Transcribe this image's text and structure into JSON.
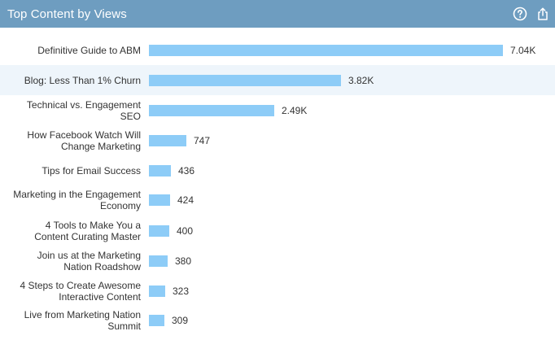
{
  "header": {
    "title": "Top Content by Views",
    "help_icon": "help-circle-icon",
    "share_icon": "share-export-icon"
  },
  "colors": {
    "header_bg": "#6e9dc0",
    "bar": "#8dccf7",
    "highlight_row": "#eef5fb"
  },
  "chart_data": {
    "type": "bar",
    "orientation": "horizontal",
    "title": "Top Content by Views",
    "categories": [
      [
        "Definitive Guide to ABM"
      ],
      [
        "Blog: Less Than 1% Churn"
      ],
      [
        "Technical vs. Engagement SEO"
      ],
      [
        "How Facebook Watch Will",
        "Change Marketing"
      ],
      [
        "Tips for Email Success"
      ],
      [
        "Marketing in the Engagement",
        "Economy"
      ],
      [
        "4 Tools to Make You a",
        "Content Curating Master"
      ],
      [
        "Join us at the Marketing",
        "Nation Roadshow"
      ],
      [
        "4 Steps to Create Awesome",
        "Interactive Content"
      ],
      [
        "Live from Marketing Nation",
        "Summit"
      ]
    ],
    "values": [
      7040,
      3820,
      2490,
      747,
      436,
      424,
      400,
      380,
      323,
      309
    ],
    "value_labels": [
      "7.04K",
      "3.82K",
      "2.49K",
      "747",
      "436",
      "424",
      "400",
      "380",
      "323",
      "309"
    ],
    "highlighted_index": 1
  }
}
